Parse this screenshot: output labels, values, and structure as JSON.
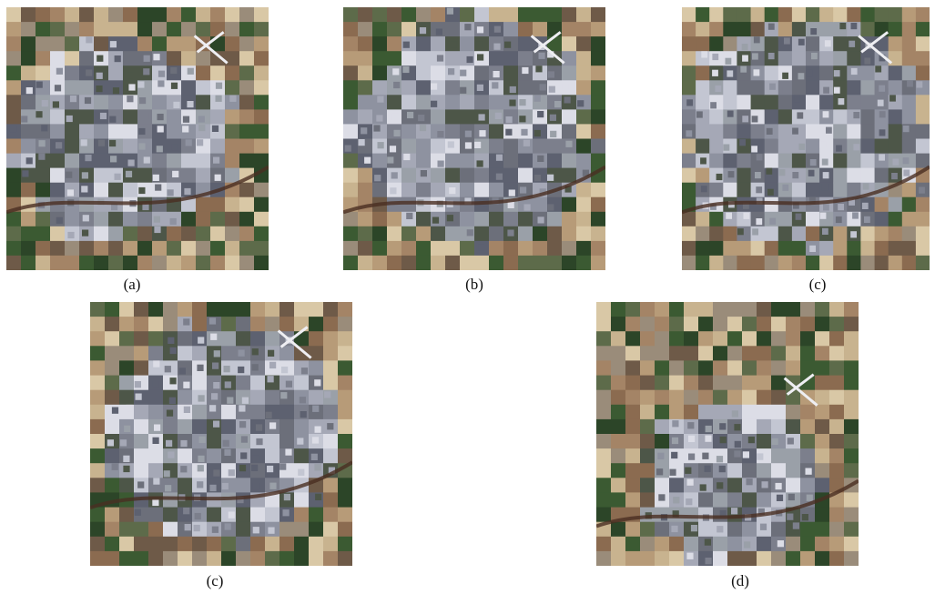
{
  "panels": [
    {
      "label": "(a)"
    },
    {
      "label": "(b)"
    },
    {
      "label": "(c)"
    },
    {
      "label": "(c)"
    },
    {
      "label": "(d)"
    }
  ]
}
